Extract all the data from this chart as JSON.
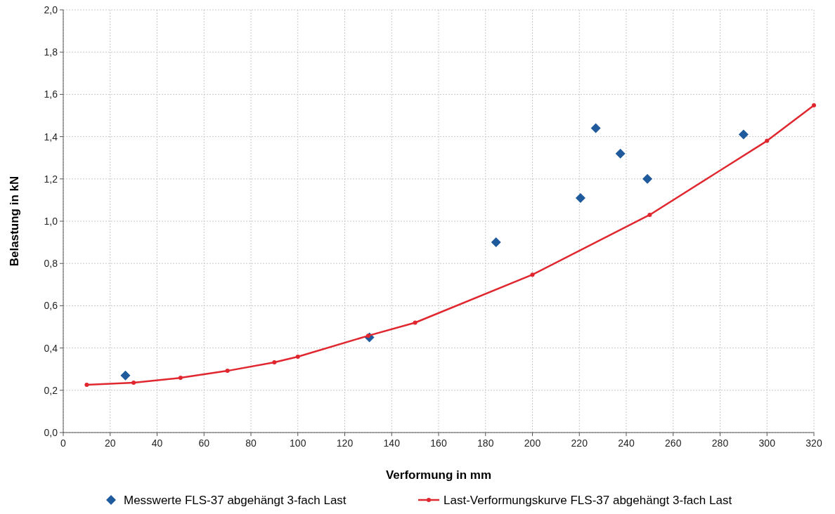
{
  "chart_data": {
    "type": "scatter",
    "xlabel": "Verformung in mm",
    "ylabel": "Belastung in kN",
    "xlim": [
      0,
      320
    ],
    "xticks": [
      0,
      20,
      40,
      60,
      80,
      100,
      120,
      140,
      160,
      180,
      200,
      220,
      240,
      260,
      280,
      300,
      320
    ],
    "ylim": [
      0,
      2
    ],
    "yticks": [
      {
        "value": 0,
        "label": "0,0"
      },
      {
        "value": 0.2,
        "label": "0,2"
      },
      {
        "value": 0.4,
        "label": "0,4"
      },
      {
        "value": 0.6,
        "label": "0,6"
      },
      {
        "value": 0.8,
        "label": "0,8"
      },
      {
        "value": 1,
        "label": "1,0"
      },
      {
        "value": 1.2,
        "label": "1,2"
      },
      {
        "value": 1.4,
        "label": "1,4"
      },
      {
        "value": 1.6,
        "label": "1,6"
      },
      {
        "value": 1.8,
        "label": "1,8"
      },
      {
        "value": 2,
        "label": "2,0"
      }
    ],
    "grid": true,
    "legend": "bottom",
    "series": [
      {
        "name": "Messwerte FLS-37 abgehängt 3-fach Last",
        "marker": "diamond",
        "color": "#1f5a9c",
        "x": [
          26.5,
          130.5,
          184.5,
          220.5,
          227,
          237.5,
          249,
          290
        ],
        "values": [
          0.27,
          0.45,
          0.9,
          1.11,
          1.44,
          1.32,
          1.2,
          1.41
        ]
      },
      {
        "name": "Last-Verformungskurve FLS-37 abgehängt 3-fach Last",
        "type": "line",
        "marker": "circle",
        "color": "#e0262e",
        "x": [
          10,
          30,
          50,
          70,
          90,
          100,
          130,
          150,
          200,
          250,
          300,
          320
        ],
        "values": [
          0.226,
          0.236,
          0.259,
          0.292,
          0.332,
          0.359,
          0.458,
          0.52,
          0.747,
          1.03,
          1.38,
          1.548
        ]
      }
    ]
  }
}
